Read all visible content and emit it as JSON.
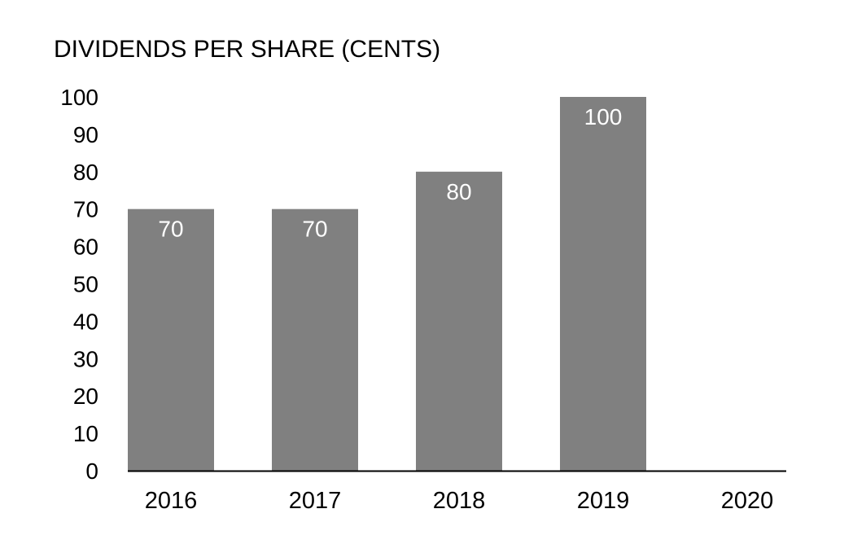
{
  "chart_data": {
    "type": "bar",
    "title": "DIVIDENDS PER SHARE (CENTS)",
    "categories": [
      "2016",
      "2017",
      "2018",
      "2019",
      "2020"
    ],
    "values": [
      70,
      70,
      80,
      100,
      null
    ],
    "data_labels": [
      "70",
      "70",
      "80",
      "100",
      ""
    ],
    "ylim": [
      0,
      100
    ],
    "yticks": [
      "0",
      "10",
      "20",
      "30",
      "40",
      "50",
      "60",
      "70",
      "80",
      "90",
      "100"
    ],
    "xlabel": "",
    "ylabel": "",
    "grid": false,
    "legend": "none",
    "colors": {
      "bar": "#808080",
      "axis": "#000000",
      "label": "#ffffff"
    }
  }
}
